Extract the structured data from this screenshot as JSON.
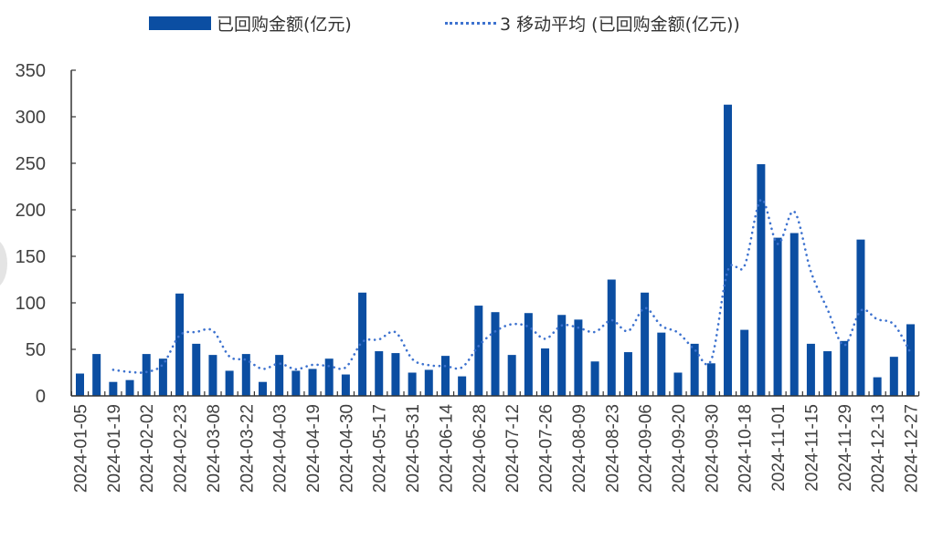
{
  "chart_data": {
    "type": "bar",
    "title": "",
    "xlabel": "",
    "ylabel": "",
    "ylim": [
      0,
      350
    ],
    "yticks": [
      0,
      50,
      100,
      150,
      200,
      250,
      300,
      350
    ],
    "grid": false,
    "legend_position": "top",
    "colors": {
      "bar": "#0b4ea2",
      "moving_average": "#3d72cf",
      "axis": "#333333",
      "tick_label": "#404040"
    },
    "x_tick_labels": [
      "2024-01-05",
      "2024-01-19",
      "2024-02-02",
      "2024-02-23",
      "2024-03-08",
      "2024-03-22",
      "2024-04-03",
      "2024-04-19",
      "2024-04-30",
      "2024-05-17",
      "2024-05-31",
      "2024-06-14",
      "2024-06-28",
      "2024-07-12",
      "2024-07-26",
      "2024-08-09",
      "2024-08-23",
      "2024-09-06",
      "2024-09-20",
      "2024-09-30",
      "2024-10-18",
      "2024-11-01",
      "2024-11-15",
      "2024-11-29",
      "2024-12-13",
      "2024-12-27"
    ],
    "x_tick_label_every": 2,
    "series": [
      {
        "name": "已回购金额(亿元)",
        "type": "bar",
        "values": [
          24,
          45,
          15,
          17,
          45,
          40,
          110,
          56,
          44,
          27,
          45,
          15,
          44,
          27,
          29,
          40,
          23,
          111,
          48,
          46,
          25,
          28,
          43,
          21,
          97,
          90,
          44,
          89,
          51,
          87,
          82,
          37,
          125,
          47,
          111,
          68,
          25,
          56,
          35,
          313,
          71,
          249,
          170,
          175,
          56,
          48,
          59,
          168,
          20,
          42,
          77
        ]
      },
      {
        "name": "3 移动平均 (已回购金额(亿元))",
        "type": "line",
        "style": "dotted",
        "window": 3
      }
    ]
  },
  "legend": {
    "bar_label": "已回购金额(亿元)",
    "line_label": "3 移动平均 (已回购金额(亿元))"
  }
}
